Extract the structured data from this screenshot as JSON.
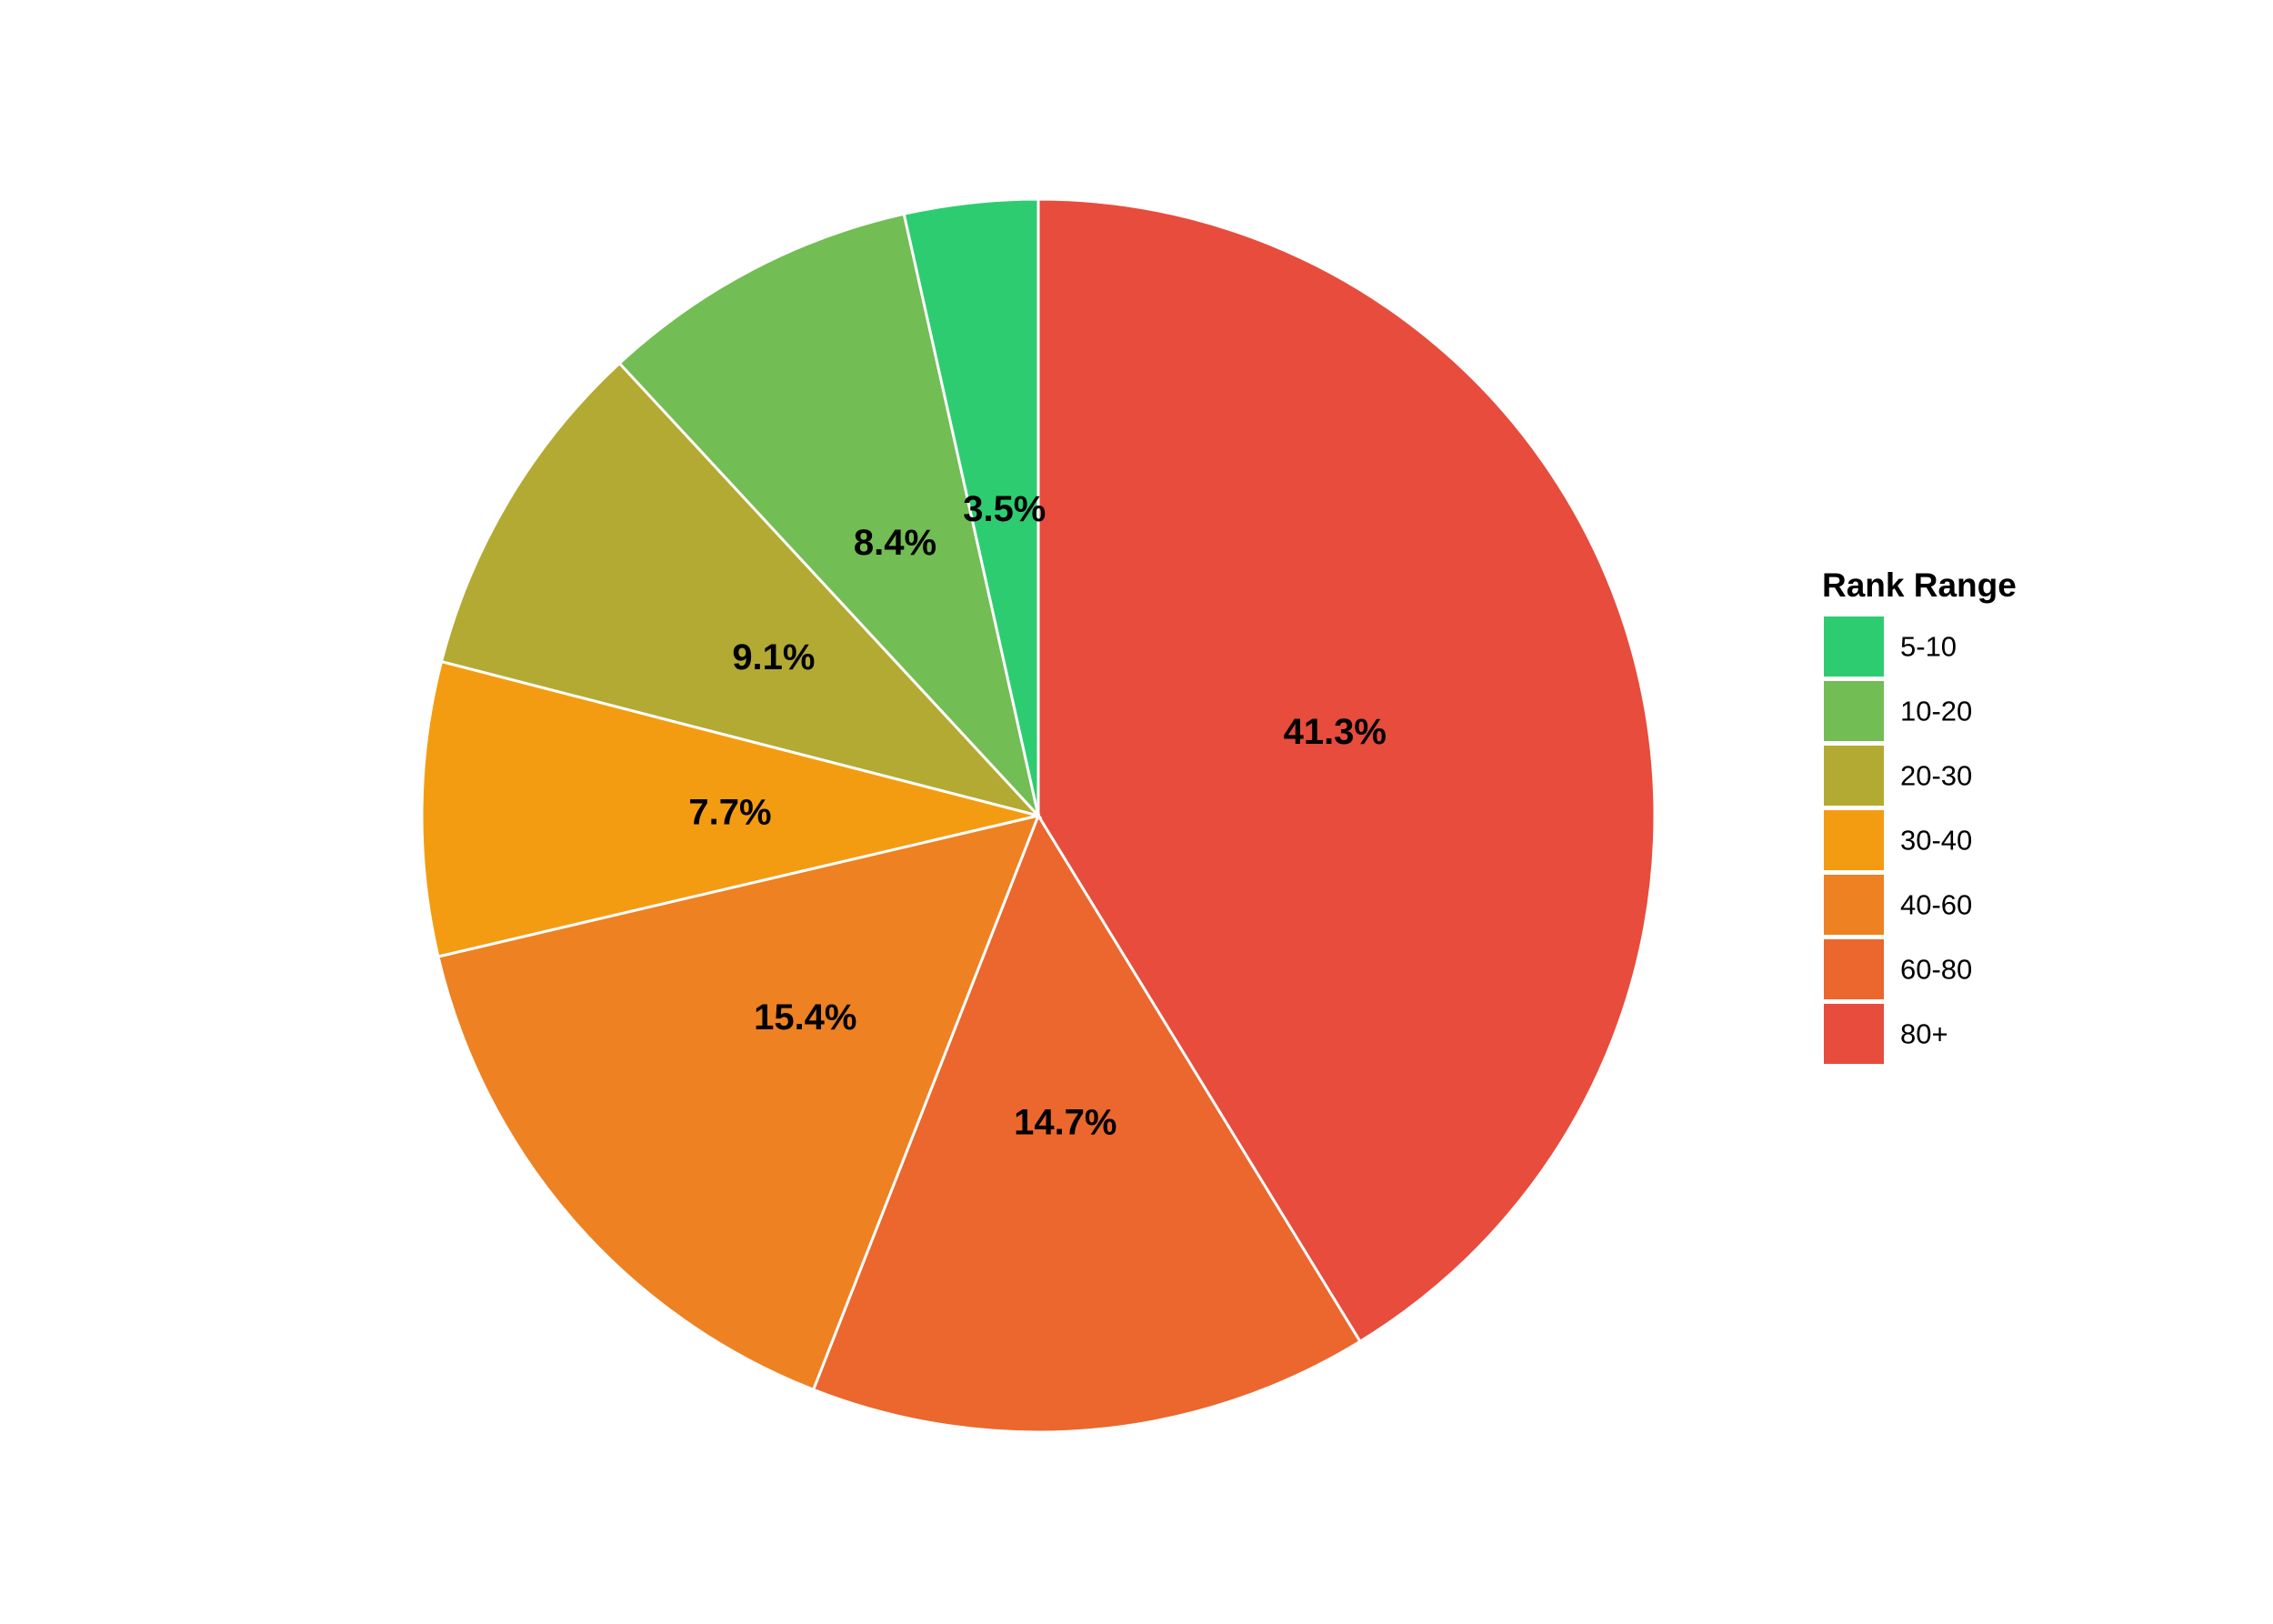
{
  "chart_data": {
    "type": "pie",
    "title": "",
    "legend_title": "Rank Range",
    "legend_position": "right",
    "direction": "clockwise",
    "start": "top",
    "categories": [
      "5-10",
      "10-20",
      "20-30",
      "30-40",
      "40-60",
      "60-80",
      "80+"
    ],
    "values": [
      3.5,
      8.4,
      9.1,
      7.7,
      15.4,
      14.7,
      41.3
    ],
    "labels": [
      "3.5%",
      "8.4%",
      "9.1%",
      "7.7%",
      "15.4%",
      "14.7%",
      "41.3%"
    ],
    "colors": [
      "#2ecc71",
      "#72bd54",
      "#b3aa33",
      "#f39c12",
      "#ee8122",
      "#eb672d",
      "#e74c3c"
    ],
    "draw_order": [
      "80+",
      "60-80",
      "40-60",
      "30-40",
      "20-30",
      "10-20",
      "5-10"
    ]
  }
}
